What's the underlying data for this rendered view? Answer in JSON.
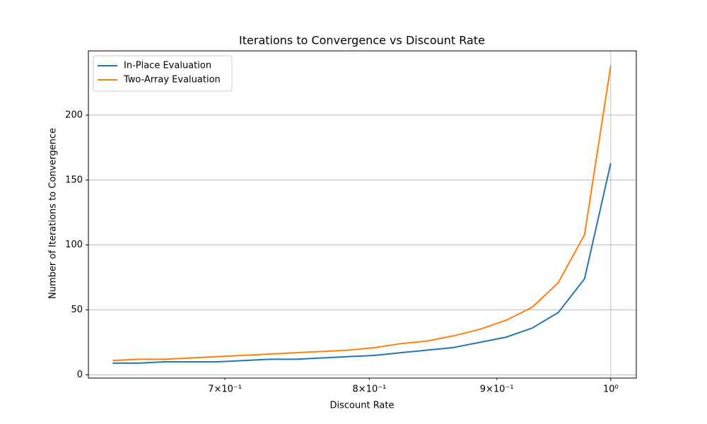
{
  "chart_data": {
    "type": "line",
    "title": "Iterations to Convergence vs Discount Rate",
    "xlabel": "Discount Rate",
    "ylabel": "Number of Iterations to Convergence",
    "xscale": "log",
    "x": [
      0.631,
      0.6463,
      0.6622,
      0.6784,
      0.6952,
      0.7122,
      0.7297,
      0.7477,
      0.766,
      0.7848,
      0.8041,
      0.8235,
      0.8438,
      0.8646,
      0.8859,
      0.9078,
      0.9299,
      0.9527,
      0.9761,
      1.0
    ],
    "series": [
      {
        "name": "In-Place Evaluation",
        "color": "#1f77b4",
        "values": [
          9,
          9,
          10,
          10,
          10,
          11,
          12,
          12,
          13,
          14,
          15,
          17,
          19,
          21,
          25,
          29,
          36,
          48,
          74,
          163
        ]
      },
      {
        "name": "Two-Array Evaluation",
        "color": "#ff7f0e",
        "values": [
          11,
          12,
          12,
          13,
          14,
          15,
          16,
          17,
          18,
          19,
          21,
          24,
          26,
          30,
          35,
          42,
          52,
          71,
          108,
          238
        ]
      }
    ],
    "xlim": [
      0.617,
      1.0239
    ],
    "xticks": [
      {
        "value": 1,
        "label": "10⁰"
      }
    ],
    "xminor_ticks": [
      {
        "value": 0.7,
        "label": "7×10⁻¹"
      },
      {
        "value": 0.8,
        "label": "8×10⁻¹"
      },
      {
        "value": 0.9,
        "label": "9×10⁻¹"
      }
    ],
    "ylim": [
      -2.5,
      249.5
    ],
    "yticks": [
      0,
      50,
      100,
      150,
      200
    ],
    "grid": true,
    "legend": "upper left"
  }
}
